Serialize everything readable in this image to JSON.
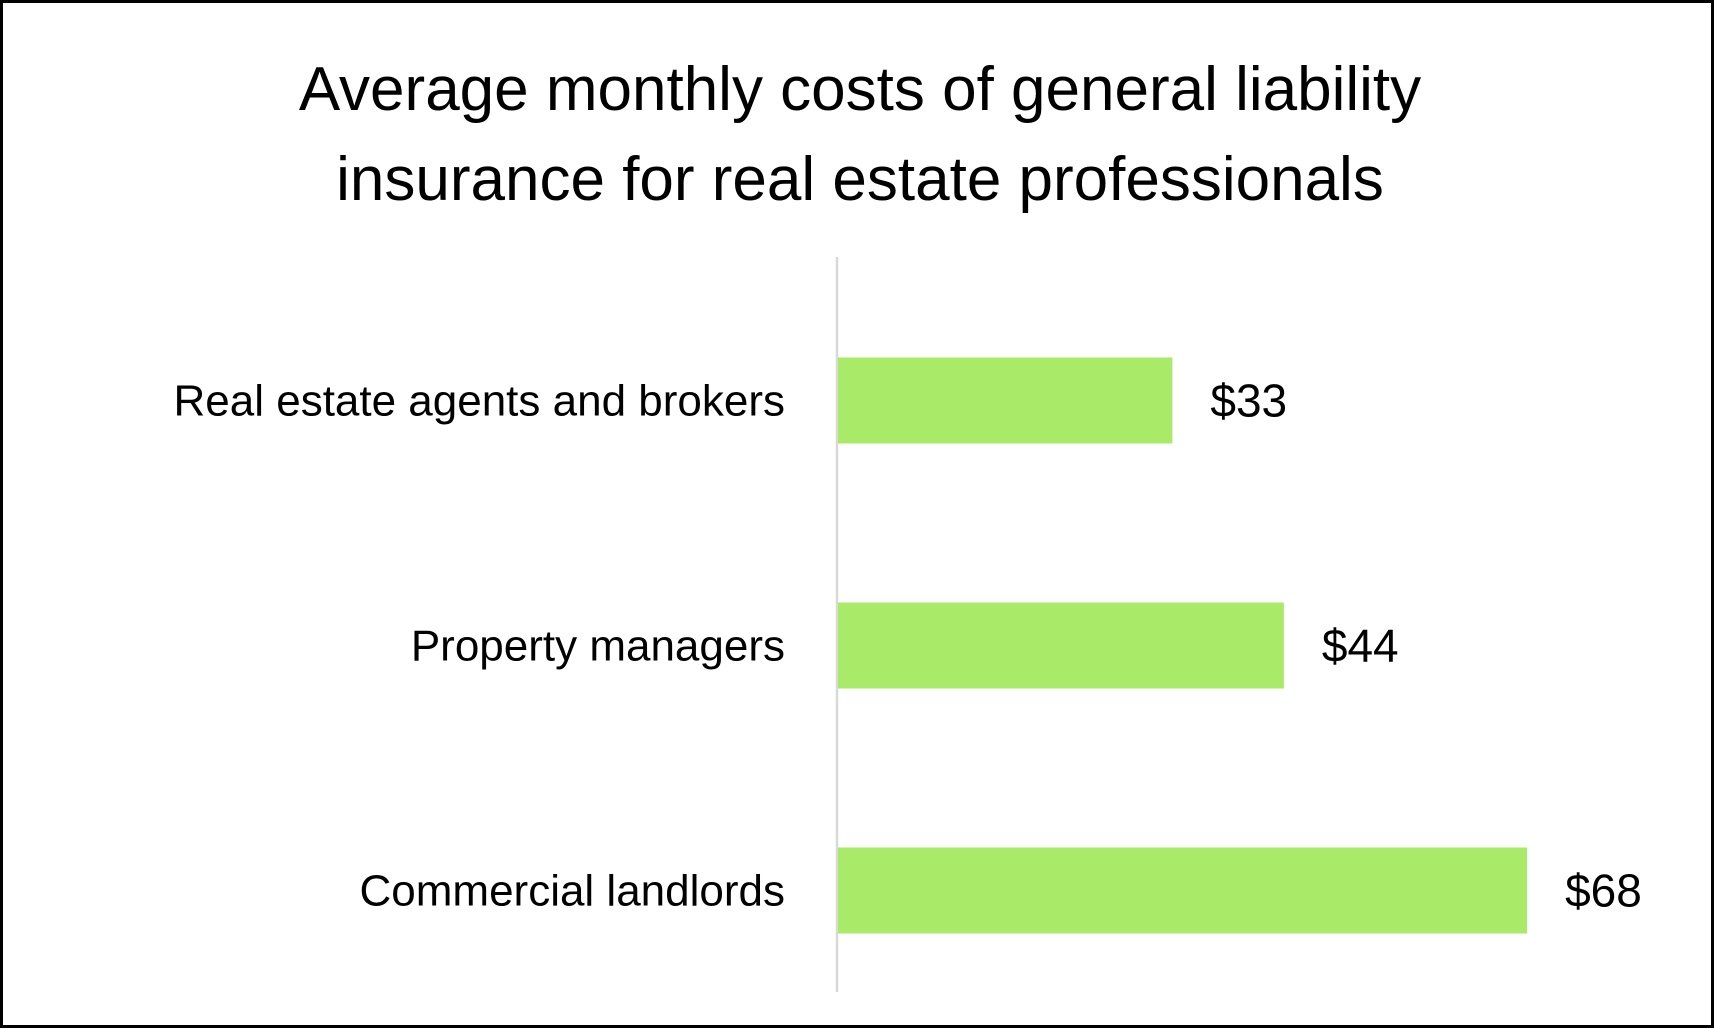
{
  "chart_data": {
    "type": "bar",
    "orientation": "horizontal",
    "title_lines": [
      "Average monthly costs of general liability",
      "insurance for real estate professionals"
    ],
    "categories": [
      "Real estate agents and brokers",
      "Property managers",
      "Commercial landlords"
    ],
    "values": [
      33,
      44,
      68
    ],
    "value_labels": [
      "$33",
      "$44",
      "$68"
    ],
    "xlim": [
      0,
      75
    ],
    "grid": false,
    "legend": "none",
    "bar_color": "#a9ea68",
    "axis_color": "#d9d9d9"
  }
}
